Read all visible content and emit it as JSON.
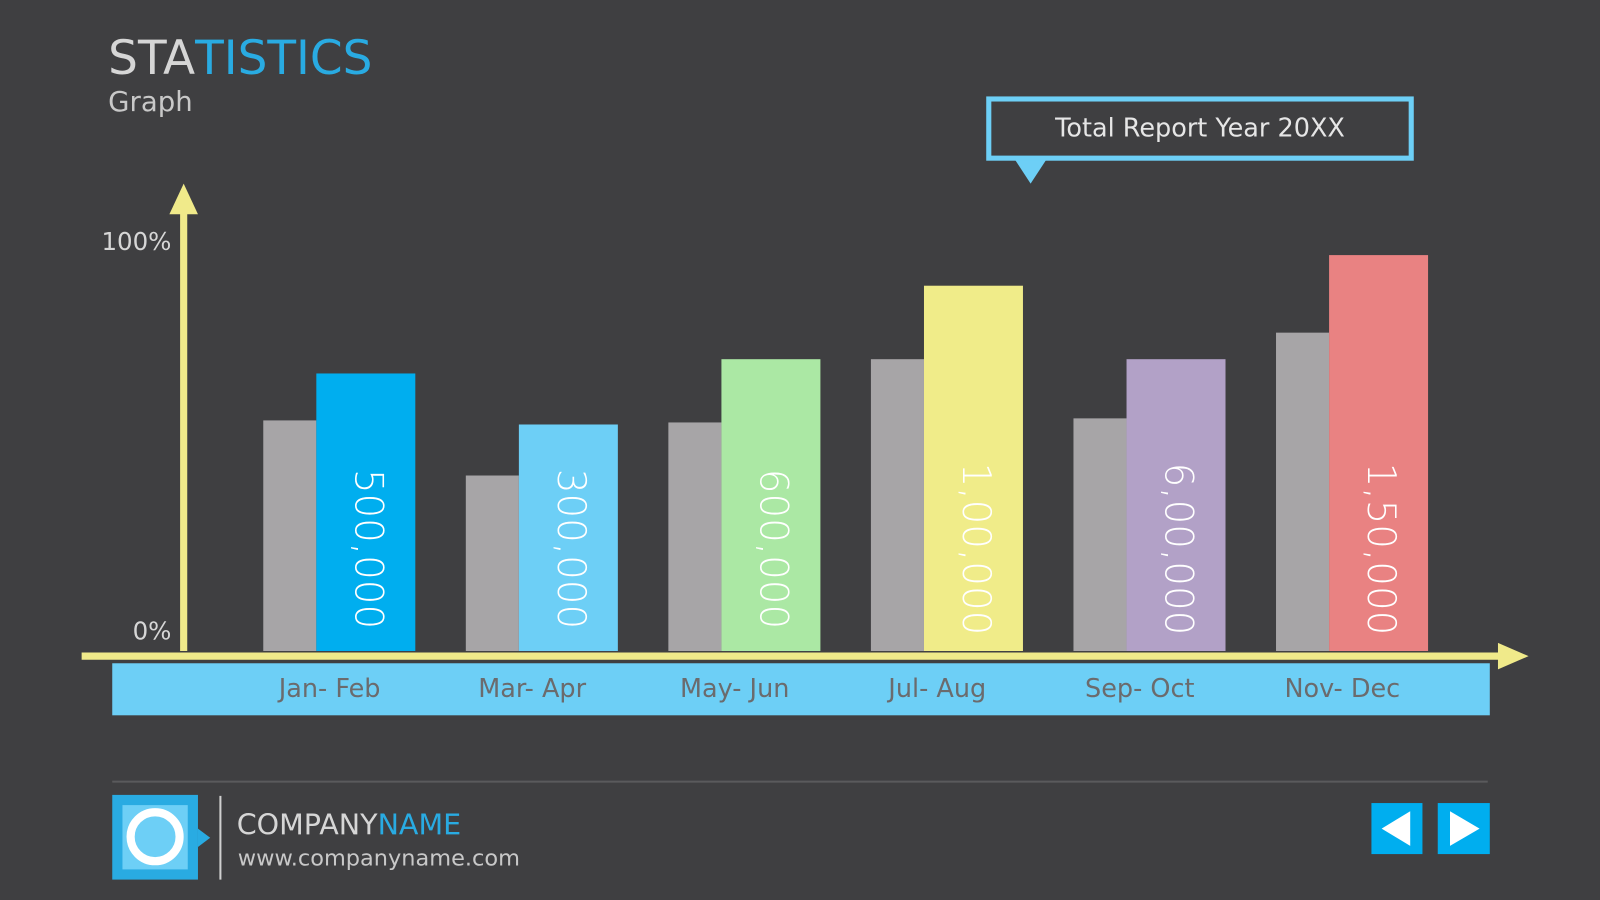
{
  "header": {
    "title_light": "STA",
    "title_accent": "TISTICS",
    "subtitle": "Graph"
  },
  "chart_data": {
    "type": "bar",
    "annotation": "Total Report Year 20XX",
    "categories": [
      "Jan- Feb",
      "Mar- Apr",
      "May- Jun",
      "Jul- Aug",
      "Sep- Oct",
      "Nov- Dec"
    ],
    "series": [
      {
        "color": "#a7a5a7",
        "values": [
          56.5,
          43,
          56,
          71.5,
          57,
          78
        ]
      },
      {
        "colors": [
          "#00aeef",
          "#6dcff6",
          "#abe8a4",
          "#f0ec89",
          "#b2a1c7",
          "#e98282"
        ],
        "values": [
          68,
          55.5,
          71.5,
          89.5,
          71.5,
          97
        ],
        "labels": [
          "500,000",
          "300,000",
          "600,000",
          "1,00,000",
          "6,00,000",
          "1,50,000"
        ]
      }
    ],
    "ylim": [
      0,
      114
    ],
    "yticks": [
      {
        "value": 0,
        "label": "0%"
      },
      {
        "value": 100,
        "label": "100%"
      }
    ],
    "grid": false
  },
  "footer": {
    "company_light": "COMPANY",
    "company_accent": "NAME",
    "url": "www.companyname.com"
  }
}
